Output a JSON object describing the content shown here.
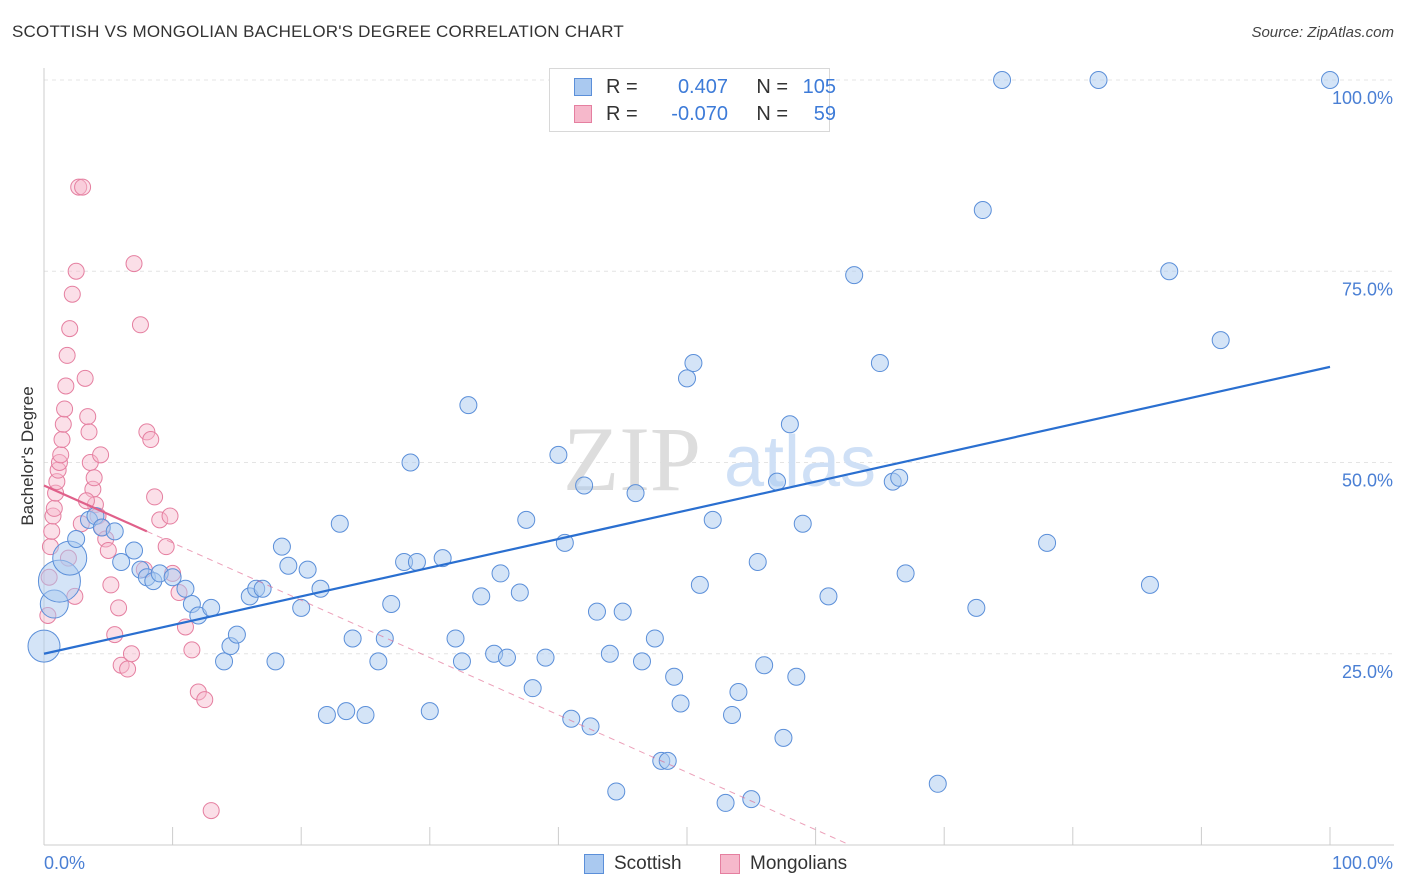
{
  "title": "SCOTTISH VS MONGOLIAN BACHELOR'S DEGREE CORRELATION CHART",
  "source": "Source: ZipAtlas.com",
  "watermark": {
    "zip": "ZIP",
    "atlas": "atlas"
  },
  "legend": {
    "rows": [
      {
        "r_label": "R =",
        "r_value": "0.407",
        "n_label": "N =",
        "n_value": "105"
      },
      {
        "r_label": "R =",
        "r_value": "-0.070",
        "n_label": "N =",
        "n_value": "59"
      }
    ]
  },
  "bottom_legend": {
    "scottish": "Scottish",
    "mongolians": "Mongolians"
  },
  "colors": {
    "blue_fill": "#aac9f0",
    "blue_stroke": "#5b8fd9",
    "blue_line": "#2a6fd0",
    "pink_fill": "#f6b8cb",
    "pink_stroke": "#e57fa0",
    "pink_line": "#e0608a",
    "tick_label": "#4a7fd4",
    "grid": "#e4e4e4"
  },
  "chart_data": {
    "type": "scatter",
    "title": "SCOTTISH VS MONGOLIAN BACHELOR'S DEGREE CORRELATION CHART",
    "xlabel": "",
    "ylabel": "Bachelor's Degree",
    "xlim": [
      0,
      100
    ],
    "ylim": [
      0,
      100
    ],
    "x_tick_labels": {
      "left": "0.0%",
      "right": "100.0%"
    },
    "y_ticks": [
      25,
      50,
      75,
      100
    ],
    "y_tick_labels": [
      "25.0%",
      "50.0%",
      "75.0%",
      "100.0%"
    ],
    "series": [
      {
        "name": "Scottish",
        "R": 0.407,
        "N": 105,
        "trend": {
          "x": [
            0,
            100
          ],
          "y": [
            25.0,
            62.5
          ]
        },
        "points": [
          [
            0,
            26
          ],
          [
            0.8,
            31.5
          ],
          [
            1.2,
            34.5
          ],
          [
            2,
            37.5
          ],
          [
            2.5,
            40
          ],
          [
            3.5,
            42.5
          ],
          [
            4,
            43
          ],
          [
            4.5,
            41.5
          ],
          [
            5.5,
            41
          ],
          [
            6,
            37
          ],
          [
            7,
            38.5
          ],
          [
            7.5,
            36
          ],
          [
            8,
            35
          ],
          [
            8.5,
            34.5
          ],
          [
            9,
            35.5
          ],
          [
            10,
            35
          ],
          [
            11,
            33.5
          ],
          [
            11.5,
            31.5
          ],
          [
            12,
            30
          ],
          [
            13,
            31
          ],
          [
            14,
            24
          ],
          [
            14.5,
            26
          ],
          [
            15,
            27.5
          ],
          [
            16,
            32.5
          ],
          [
            16.5,
            33.5
          ],
          [
            17,
            33.5
          ],
          [
            18,
            24
          ],
          [
            18.5,
            39
          ],
          [
            19,
            36.5
          ],
          [
            20,
            31
          ],
          [
            20.5,
            36
          ],
          [
            21.5,
            33.5
          ],
          [
            22,
            17
          ],
          [
            23,
            42
          ],
          [
            23.5,
            17.5
          ],
          [
            24,
            27
          ],
          [
            25,
            17
          ],
          [
            26,
            24
          ],
          [
            26.5,
            27
          ],
          [
            27,
            31.5
          ],
          [
            28,
            37
          ],
          [
            28.5,
            50
          ],
          [
            29,
            37
          ],
          [
            30,
            17.5
          ],
          [
            31,
            37.5
          ],
          [
            32,
            27
          ],
          [
            32.5,
            24
          ],
          [
            33,
            57.5
          ],
          [
            34,
            32.5
          ],
          [
            35,
            25
          ],
          [
            35.5,
            35.5
          ],
          [
            36,
            24.5
          ],
          [
            37,
            33
          ],
          [
            37.5,
            42.5
          ],
          [
            38,
            20.5
          ],
          [
            39,
            24.5
          ],
          [
            40,
            51
          ],
          [
            40.5,
            39.5
          ],
          [
            41,
            16.5
          ],
          [
            42,
            47
          ],
          [
            42.5,
            15.5
          ],
          [
            43,
            30.5
          ],
          [
            44,
            25
          ],
          [
            44.5,
            7
          ],
          [
            45,
            30.5
          ],
          [
            46,
            46
          ],
          [
            46.5,
            24
          ],
          [
            47.5,
            27
          ],
          [
            48,
            11
          ],
          [
            48.5,
            11
          ],
          [
            49,
            22
          ],
          [
            49.5,
            18.5
          ],
          [
            50,
            61
          ],
          [
            50.5,
            63
          ],
          [
            51,
            34
          ],
          [
            52,
            42.5
          ],
          [
            53,
            5.5
          ],
          [
            53.5,
            17
          ],
          [
            54,
            20
          ],
          [
            55,
            6
          ],
          [
            55.5,
            37
          ],
          [
            56,
            23.5
          ],
          [
            57,
            47.5
          ],
          [
            57.5,
            14
          ],
          [
            58,
            55
          ],
          [
            58.5,
            22
          ],
          [
            59,
            42
          ],
          [
            61,
            32.5
          ],
          [
            63,
            74.5
          ],
          [
            65,
            63
          ],
          [
            66,
            47.5
          ],
          [
            66.5,
            48
          ],
          [
            67,
            35.5
          ],
          [
            69.5,
            8
          ],
          [
            72.5,
            31
          ],
          [
            73,
            83
          ],
          [
            74.5,
            100
          ],
          [
            78,
            39.5
          ],
          [
            82,
            100
          ],
          [
            86,
            34
          ],
          [
            87.5,
            75
          ],
          [
            91.5,
            66
          ],
          [
            100,
            100
          ]
        ]
      },
      {
        "name": "Mongolians",
        "R": -0.07,
        "N": 59,
        "trend": {
          "x": [
            0,
            8
          ],
          "y": [
            47.0,
            41.0
          ]
        },
        "trend_dashed": {
          "x": [
            8,
            100
          ],
          "y": [
            41.0,
            -28.0
          ]
        },
        "points": [
          [
            0.3,
            30
          ],
          [
            0.4,
            35
          ],
          [
            0.5,
            39
          ],
          [
            0.6,
            41
          ],
          [
            0.7,
            43
          ],
          [
            0.8,
            44
          ],
          [
            0.9,
            46
          ],
          [
            1.0,
            47.5
          ],
          [
            1.1,
            49
          ],
          [
            1.2,
            50
          ],
          [
            1.3,
            51
          ],
          [
            1.4,
            53
          ],
          [
            1.5,
            55
          ],
          [
            1.6,
            57
          ],
          [
            1.7,
            60
          ],
          [
            1.8,
            64
          ],
          [
            2.0,
            67.5
          ],
          [
            2.2,
            72
          ],
          [
            2.5,
            75
          ],
          [
            2.7,
            86
          ],
          [
            3.0,
            86
          ],
          [
            3.2,
            61
          ],
          [
            3.4,
            56
          ],
          [
            3.5,
            54
          ],
          [
            3.6,
            50
          ],
          [
            3.8,
            46.5
          ],
          [
            4.0,
            44.5
          ],
          [
            4.2,
            43
          ],
          [
            4.5,
            41.5
          ],
          [
            4.8,
            40
          ],
          [
            5.0,
            38.5
          ],
          [
            5.5,
            27.5
          ],
          [
            6.0,
            23.5
          ],
          [
            6.5,
            23
          ],
          [
            7.0,
            76
          ],
          [
            7.5,
            68
          ],
          [
            8.0,
            54
          ],
          [
            8.3,
            53
          ],
          [
            8.6,
            45.5
          ],
          [
            9.0,
            42.5
          ],
          [
            9.5,
            39
          ],
          [
            10.0,
            35.5
          ],
          [
            10.5,
            33
          ],
          [
            11.0,
            28.5
          ],
          [
            11.5,
            25.5
          ],
          [
            12.0,
            20
          ],
          [
            12.5,
            19
          ],
          [
            13.0,
            4.5
          ],
          [
            1.9,
            37.5
          ],
          [
            2.4,
            32.5
          ],
          [
            2.9,
            42
          ],
          [
            3.3,
            45
          ],
          [
            3.9,
            48
          ],
          [
            4.4,
            51
          ],
          [
            5.2,
            34
          ],
          [
            5.8,
            31
          ],
          [
            6.8,
            25
          ],
          [
            7.8,
            36
          ],
          [
            9.8,
            43
          ]
        ]
      }
    ]
  }
}
